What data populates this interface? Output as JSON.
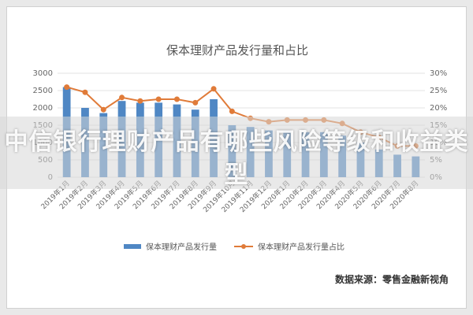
{
  "chart_data": {
    "type": "bar",
    "title": "保本理财产品发行量和占比",
    "categories": [
      "2019年1月",
      "2019年2月",
      "2019年3月",
      "2019年4月",
      "2019年5月",
      "2019年6月",
      "2019年7月",
      "2019年8月",
      "2019年9月",
      "2019年10月",
      "2019年11月",
      "2019年12月",
      "2020年1月",
      "2020年2月",
      "2020年3月",
      "2020年4月",
      "2020年5月",
      "2020年6月",
      "2020年7月",
      "2020年8月"
    ],
    "series": [
      {
        "name": "保本理财产品发行量",
        "type": "bar",
        "axis": "left",
        "color": "#4f87c4",
        "values": [
          2600,
          2000,
          1850,
          2200,
          2150,
          2150,
          2100,
          1950,
          2250,
          1500,
          1450,
          1350,
          1350,
          1300,
          1300,
          1200,
          1000,
          800,
          650,
          600
        ]
      },
      {
        "name": "保本理财产品发行量占比",
        "type": "line",
        "axis": "right",
        "color": "#e07b39",
        "values": [
          26,
          24.5,
          19.5,
          23,
          22,
          22.5,
          22.5,
          21.5,
          25.5,
          19,
          17,
          16,
          16.5,
          16.5,
          16.5,
          15.5,
          13,
          11.5,
          9,
          9
        ]
      }
    ],
    "y_left": {
      "ticks": [
        "0",
        "500",
        "1000",
        "1500",
        "2000",
        "2500",
        "3000"
      ],
      "range": [
        0,
        3000
      ]
    },
    "y_right": {
      "ticks": [
        "0%",
        "5%",
        "10%",
        "15%",
        "20%",
        "25%",
        "30%"
      ],
      "range": [
        0,
        30
      ]
    },
    "legend_position": "bottom",
    "grid": true
  },
  "source": "数据来源：零售金融新视角",
  "overlay_title": "中信银行理财产品有哪些风险等级和收益类型"
}
